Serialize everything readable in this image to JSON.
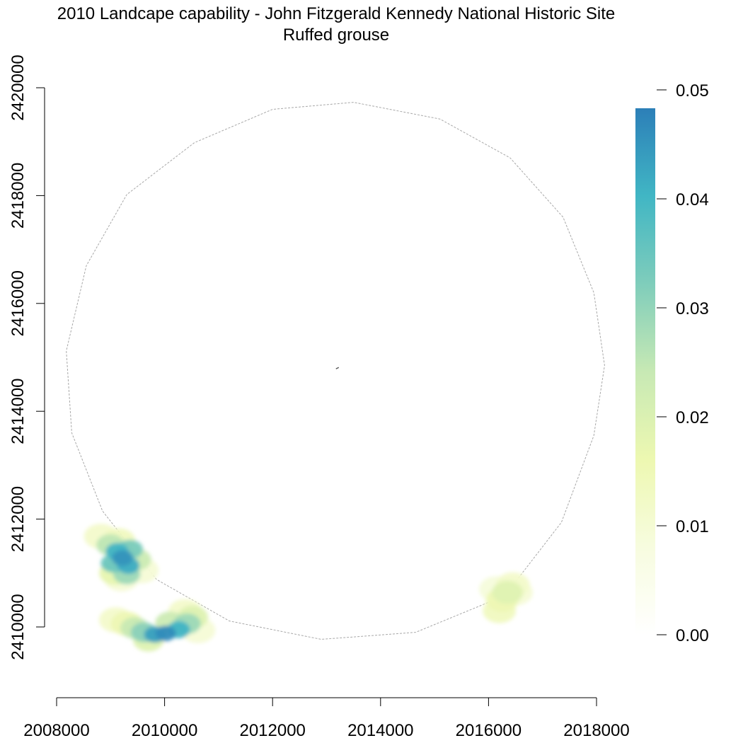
{
  "chart_data": {
    "type": "heatmap",
    "title": "2010 Landcape capability - John Fitzgerald Kennedy National Historic Site",
    "subtitle": "Ruffed grouse",
    "xlabel": "",
    "ylabel": "",
    "xlim": [
      2008000,
      2018000
    ],
    "ylim": [
      2410000,
      2420000
    ],
    "x_ticks": [
      "2008000",
      "2010000",
      "2012000",
      "2014000",
      "2016000",
      "2018000"
    ],
    "y_ticks": [
      "2410000",
      "2412000",
      "2414000",
      "2416000",
      "2418000",
      "2420000"
    ],
    "legend": {
      "position": "right",
      "range": [
        0.0,
        0.05
      ],
      "ticks": [
        "0.00",
        "0.01",
        "0.02",
        "0.03",
        "0.04",
        "0.05"
      ],
      "colors": [
        "#ffffff",
        "#f7fcdf",
        "#edf8b1",
        "#c7e9b4",
        "#7fcdbb",
        "#41b6c4",
        "#2c7fb8"
      ]
    },
    "boundary": {
      "shape": "polygon",
      "style": "dashed",
      "color": "#a8a8a8",
      "vertices": [
        [
          2013500,
          2419730
        ],
        [
          2012000,
          2419600
        ],
        [
          2010550,
          2418980
        ],
        [
          2009300,
          2418020
        ],
        [
          2008550,
          2416700
        ],
        [
          2008180,
          2415120
        ],
        [
          2008280,
          2413600
        ],
        [
          2008850,
          2412150
        ],
        [
          2009850,
          2410880
        ],
        [
          2011200,
          2410110
        ],
        [
          2012900,
          2409770
        ],
        [
          2014650,
          2409900
        ],
        [
          2016300,
          2410580
        ],
        [
          2017350,
          2411940
        ],
        [
          2017950,
          2413550
        ],
        [
          2018150,
          2414850
        ],
        [
          2017950,
          2416200
        ],
        [
          2017380,
          2417600
        ],
        [
          2016400,
          2418700
        ],
        [
          2015100,
          2419420
        ]
      ]
    },
    "site_marker": {
      "x": 2013200,
      "y": 2414800
    },
    "patches": [
      {
        "name": "southwest-upper",
        "cells": [
          {
            "x": 2009220,
            "y": 2411280,
            "value": 0.047
          },
          {
            "x": 2009120,
            "y": 2411400,
            "value": 0.042
          },
          {
            "x": 2009330,
            "y": 2411140,
            "value": 0.043
          },
          {
            "x": 2009050,
            "y": 2411180,
            "value": 0.036
          },
          {
            "x": 2009360,
            "y": 2411440,
            "value": 0.034
          },
          {
            "x": 2009300,
            "y": 2410980,
            "value": 0.03
          },
          {
            "x": 2009000,
            "y": 2411520,
            "value": 0.026
          },
          {
            "x": 2009480,
            "y": 2411250,
            "value": 0.024
          },
          {
            "x": 2009080,
            "y": 2411000,
            "value": 0.018
          },
          {
            "x": 2009150,
            "y": 2411600,
            "value": 0.014
          },
          {
            "x": 2008820,
            "y": 2411680,
            "value": 0.012
          },
          {
            "x": 2009570,
            "y": 2411050,
            "value": 0.01
          },
          {
            "x": 2009200,
            "y": 2410900,
            "value": 0.01
          }
        ]
      },
      {
        "name": "southwest-lower",
        "cells": [
          {
            "x": 2010020,
            "y": 2409880,
            "value": 0.048
          },
          {
            "x": 2009820,
            "y": 2409860,
            "value": 0.045
          },
          {
            "x": 2010260,
            "y": 2409950,
            "value": 0.042
          },
          {
            "x": 2010420,
            "y": 2410060,
            "value": 0.03
          },
          {
            "x": 2009620,
            "y": 2409900,
            "value": 0.032
          },
          {
            "x": 2009450,
            "y": 2409980,
            "value": 0.025
          },
          {
            "x": 2010520,
            "y": 2410180,
            "value": 0.02
          },
          {
            "x": 2009300,
            "y": 2410060,
            "value": 0.016
          },
          {
            "x": 2009100,
            "y": 2410130,
            "value": 0.012
          },
          {
            "x": 2010380,
            "y": 2410280,
            "value": 0.012
          },
          {
            "x": 2010100,
            "y": 2410080,
            "value": 0.024
          },
          {
            "x": 2010620,
            "y": 2409940,
            "value": 0.01
          },
          {
            "x": 2009700,
            "y": 2409760,
            "value": 0.02
          }
        ]
      },
      {
        "name": "southeast",
        "cells": [
          {
            "x": 2016350,
            "y": 2410640,
            "value": 0.02
          },
          {
            "x": 2016250,
            "y": 2410500,
            "value": 0.016
          },
          {
            "x": 2016200,
            "y": 2410300,
            "value": 0.014
          },
          {
            "x": 2016450,
            "y": 2410780,
            "value": 0.012
          },
          {
            "x": 2016500,
            "y": 2410640,
            "value": 0.01
          },
          {
            "x": 2016150,
            "y": 2410700,
            "value": 0.009
          }
        ]
      }
    ]
  }
}
